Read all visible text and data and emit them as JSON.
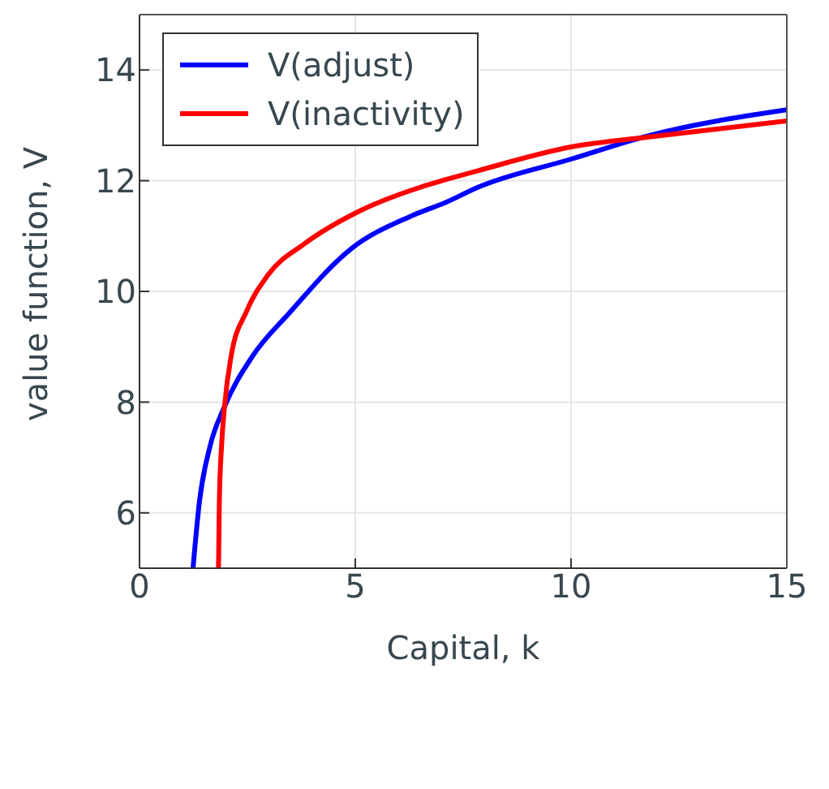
{
  "chart_data": {
    "type": "line",
    "xlabel": "Capital, k",
    "ylabel": "value function, V",
    "xlim": [
      0,
      15
    ],
    "xticks": [
      0,
      5,
      10,
      15
    ],
    "ylim": [
      5,
      15
    ],
    "yticks": [
      6,
      8,
      10,
      12,
      14
    ],
    "grid": true,
    "legend": "top left",
    "marker": "none",
    "line_style": "solid",
    "series": [
      {
        "name": "V(adjust)",
        "color": "#0000ff",
        "x": [
          1.24,
          1.39,
          1.63,
          1.97,
          2.61,
          3.46,
          4.92,
          6.26,
          7.1,
          7.84,
          10,
          11.73,
          15
        ],
        "values": [
          5,
          6.21,
          7.19,
          7.92,
          8.82,
          9.6,
          10.78,
          11.35,
          11.61,
          11.88,
          12.39,
          12.8,
          13.28
        ]
      },
      {
        "name": "V(inactivity)",
        "color": "#ff0000",
        "x": [
          1.83,
          1.85,
          1.9,
          1.97,
          2.12,
          2.48,
          2.97,
          3.82,
          5.04,
          6.5,
          7.1,
          7.84,
          10,
          11.8,
          15
        ],
        "values": [
          5,
          6.21,
          7.19,
          7.92,
          8.82,
          9.64,
          10.29,
          10.86,
          11.43,
          11.88,
          12.02,
          12.18,
          12.61,
          12.79,
          13.08
        ]
      }
    ]
  }
}
